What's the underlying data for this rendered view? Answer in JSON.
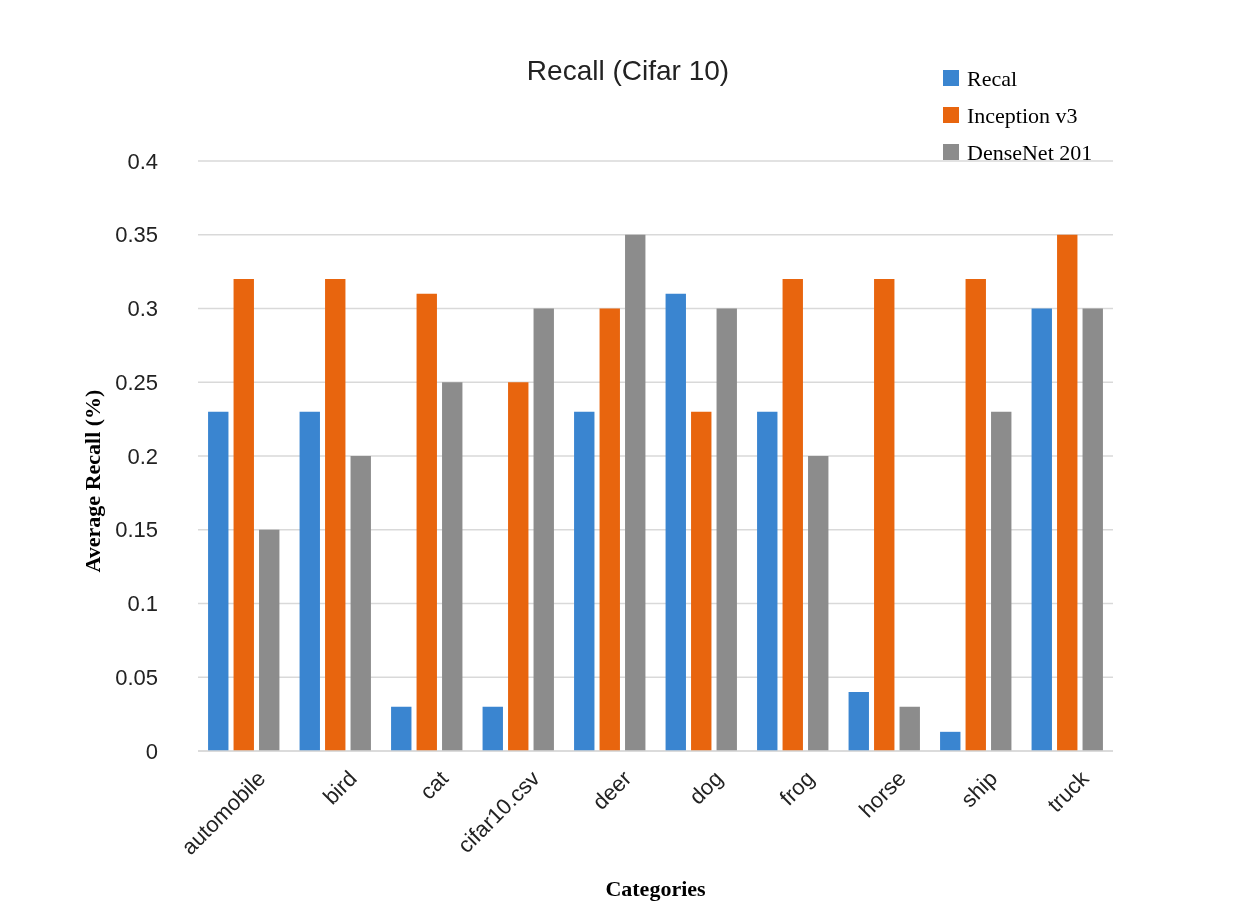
{
  "chart_data": {
    "type": "bar",
    "title": "Recall (Cifar 10)",
    "xlabel": "Categories",
    "ylabel": "Average Recall (%)",
    "categories": [
      "automobile",
      "bird",
      "cat",
      "cifar10.csv",
      "deer",
      "dog",
      "frog",
      "horse",
      "ship",
      "truck"
    ],
    "series": [
      {
        "name": "Recal",
        "color": "#3a85d0",
        "values": [
          0.23,
          0.23,
          0.03,
          0.03,
          0.23,
          0.31,
          0.23,
          0.04,
          0.013,
          0.3
        ]
      },
      {
        "name": "Inception v3",
        "color": "#e8650e",
        "values": [
          0.32,
          0.32,
          0.31,
          0.25,
          0.3,
          0.23,
          0.32,
          0.32,
          0.32,
          0.35
        ]
      },
      {
        "name": "DenseNet 201",
        "color": "#8c8c8c",
        "values": [
          0.15,
          0.2,
          0.25,
          0.3,
          0.35,
          0.3,
          0.2,
          0.03,
          0.23,
          0.3
        ]
      }
    ],
    "ylim": [
      0,
      0.4
    ],
    "yticks": [
      0,
      0.05,
      0.1,
      0.15,
      0.2,
      0.25,
      0.3,
      0.35,
      0.4
    ],
    "grid": "y",
    "legend": "top right"
  }
}
